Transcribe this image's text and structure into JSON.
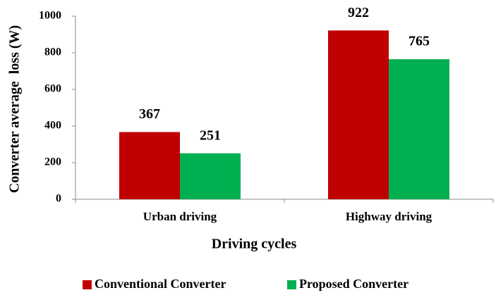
{
  "chart_data": {
    "type": "bar",
    "categories": [
      "Urban driving",
      "Highway driving"
    ],
    "series": [
      {
        "name": "Conventional Converter",
        "color": "#c00000",
        "values": [
          367,
          922
        ]
      },
      {
        "name": "Proposed Converter",
        "color": "#00b050",
        "values": [
          251,
          765
        ]
      }
    ],
    "x_label": "Driving cycles",
    "y_label": "Converter average  loss (W)",
    "ylim": [
      0,
      1000
    ],
    "yticks": [
      0,
      200,
      400,
      600,
      800,
      1000
    ],
    "legend": "bottom"
  }
}
